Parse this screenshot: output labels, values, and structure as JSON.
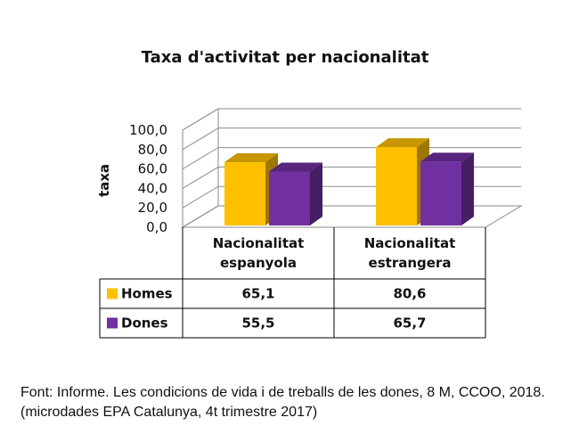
{
  "chart_data": {
    "type": "bar",
    "title": "Taxa d'activitat per nacionalitat",
    "ylabel": "taxa",
    "xlabel": "",
    "ylim": [
      0,
      100
    ],
    "y_ticks": [
      "0,0",
      "20,0",
      "40,0",
      "60,0",
      "80,0",
      "100,0"
    ],
    "categories": [
      [
        "Nacionalitat",
        "espanyola"
      ],
      [
        "Nacionalitat",
        "estrangera"
      ]
    ],
    "series": [
      {
        "name": "Homes",
        "values": [
          65.1,
          80.6
        ],
        "labels": [
          "65,1",
          "80,6"
        ],
        "color": "#FFC000"
      },
      {
        "name": "Dones",
        "values": [
          55.5,
          65.7
        ],
        "labels": [
          "55,5",
          "65,7"
        ],
        "color": "#7030A0"
      }
    ],
    "grid": true,
    "legend": "data-table"
  },
  "source_note": "Font: Informe. Les condicions de vida i de treballs de les dones, 8 M, CCOO, 2018. (microdades EPA Catalunya, 4t trimestre 2017)"
}
